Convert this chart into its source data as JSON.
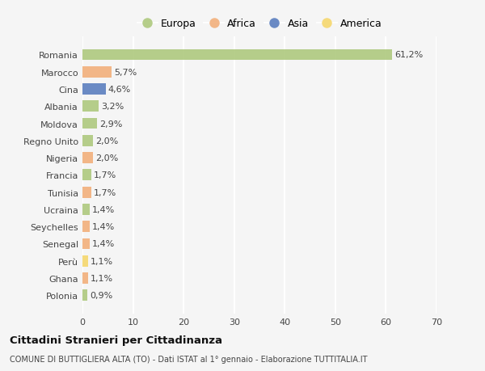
{
  "countries": [
    "Polonia",
    "Ghana",
    "Perù",
    "Senegal",
    "Seychelles",
    "Ucraina",
    "Tunisia",
    "Francia",
    "Nigeria",
    "Regno Unito",
    "Moldova",
    "Albania",
    "Cina",
    "Marocco",
    "Romania"
  ],
  "values": [
    0.9,
    1.1,
    1.1,
    1.4,
    1.4,
    1.4,
    1.7,
    1.7,
    2.0,
    2.0,
    2.9,
    3.2,
    4.6,
    5.7,
    61.2
  ],
  "labels": [
    "0,9%",
    "1,1%",
    "1,1%",
    "1,4%",
    "1,4%",
    "1,4%",
    "1,7%",
    "1,7%",
    "2,0%",
    "2,0%",
    "2,9%",
    "3,2%",
    "4,6%",
    "5,7%",
    "61,2%"
  ],
  "continents": [
    "Europa",
    "Africa",
    "America",
    "Africa",
    "Africa",
    "Europa",
    "Africa",
    "Europa",
    "Africa",
    "Europa",
    "Europa",
    "Europa",
    "Asia",
    "Africa",
    "Europa"
  ],
  "continent_colors": {
    "Europa": "#aec97e",
    "Africa": "#f2b07b",
    "Asia": "#5b7fbf",
    "America": "#f5d76e"
  },
  "legend_order": [
    "Europa",
    "Africa",
    "Asia",
    "America"
  ],
  "title": "Cittadini Stranieri per Cittadinanza",
  "subtitle": "COMUNE DI BUTTIGLIERA ALTA (TO) - Dati ISTAT al 1° gennaio - Elaborazione TUTTITALIA.IT",
  "xlim": [
    0,
    70
  ],
  "xticks": [
    0,
    10,
    20,
    30,
    40,
    50,
    60,
    70
  ],
  "bg_color": "#f5f5f5",
  "grid_color": "#ffffff",
  "bar_height": 0.65,
  "label_fontsize": 8,
  "ytick_fontsize": 8,
  "xtick_fontsize": 8
}
